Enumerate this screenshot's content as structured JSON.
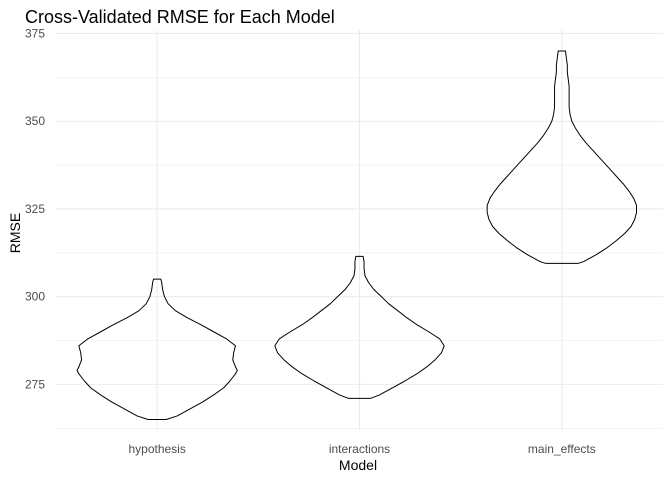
{
  "chart_data": {
    "type": "violin",
    "title": "Cross-Validated RMSE for Each Model",
    "xlabel": "Model",
    "ylabel": "RMSE",
    "categories": [
      "hypothesis",
      "interactions",
      "main_effects"
    ],
    "ylim": [
      262,
      376
    ],
    "yticks": [
      275,
      300,
      325,
      350,
      375
    ],
    "grid": true,
    "series": [
      {
        "category": "hypothesis",
        "profile": [
          [
            265,
            0.1
          ],
          [
            266,
            0.22
          ],
          [
            268,
            0.36
          ],
          [
            270,
            0.5
          ],
          [
            272,
            0.62
          ],
          [
            274,
            0.73
          ],
          [
            276,
            0.8
          ],
          [
            278,
            0.86
          ],
          [
            279,
            0.88
          ],
          [
            280,
            0.86
          ],
          [
            282,
            0.83
          ],
          [
            284,
            0.84
          ],
          [
            286,
            0.86
          ],
          [
            288,
            0.76
          ],
          [
            290,
            0.62
          ],
          [
            292,
            0.48
          ],
          [
            294,
            0.33
          ],
          [
            296,
            0.2
          ],
          [
            298,
            0.12
          ],
          [
            300,
            0.08
          ],
          [
            302,
            0.06
          ],
          [
            304,
            0.05
          ],
          [
            305,
            0.04
          ]
        ]
      },
      {
        "category": "interactions",
        "profile": [
          [
            271,
            0.12
          ],
          [
            272,
            0.22
          ],
          [
            274,
            0.36
          ],
          [
            276,
            0.5
          ],
          [
            278,
            0.63
          ],
          [
            280,
            0.74
          ],
          [
            282,
            0.83
          ],
          [
            284,
            0.9
          ],
          [
            286,
            0.93
          ],
          [
            288,
            0.88
          ],
          [
            290,
            0.76
          ],
          [
            292,
            0.63
          ],
          [
            294,
            0.52
          ],
          [
            296,
            0.42
          ],
          [
            298,
            0.32
          ],
          [
            300,
            0.24
          ],
          [
            302,
            0.16
          ],
          [
            304,
            0.1
          ],
          [
            306,
            0.06
          ],
          [
            308,
            0.05
          ],
          [
            310,
            0.05
          ],
          [
            311.5,
            0.04
          ]
        ]
      },
      {
        "category": "main_effects",
        "profile": [
          [
            309.5,
            0.18
          ],
          [
            310,
            0.24
          ],
          [
            312,
            0.38
          ],
          [
            314,
            0.5
          ],
          [
            316,
            0.6
          ],
          [
            318,
            0.69
          ],
          [
            320,
            0.76
          ],
          [
            322,
            0.8
          ],
          [
            324,
            0.82
          ],
          [
            326,
            0.82
          ],
          [
            328,
            0.79
          ],
          [
            330,
            0.74
          ],
          [
            332,
            0.68
          ],
          [
            334,
            0.61
          ],
          [
            336,
            0.54
          ],
          [
            338,
            0.47
          ],
          [
            340,
            0.4
          ],
          [
            342,
            0.33
          ],
          [
            344,
            0.26
          ],
          [
            346,
            0.2
          ],
          [
            348,
            0.15
          ],
          [
            350,
            0.11
          ],
          [
            352,
            0.09
          ],
          [
            354,
            0.08
          ],
          [
            356,
            0.08
          ],
          [
            358,
            0.08
          ],
          [
            360,
            0.08
          ],
          [
            362,
            0.07
          ],
          [
            364,
            0.06
          ],
          [
            366,
            0.06
          ],
          [
            368,
            0.05
          ],
          [
            370,
            0.04
          ]
        ]
      }
    ]
  }
}
